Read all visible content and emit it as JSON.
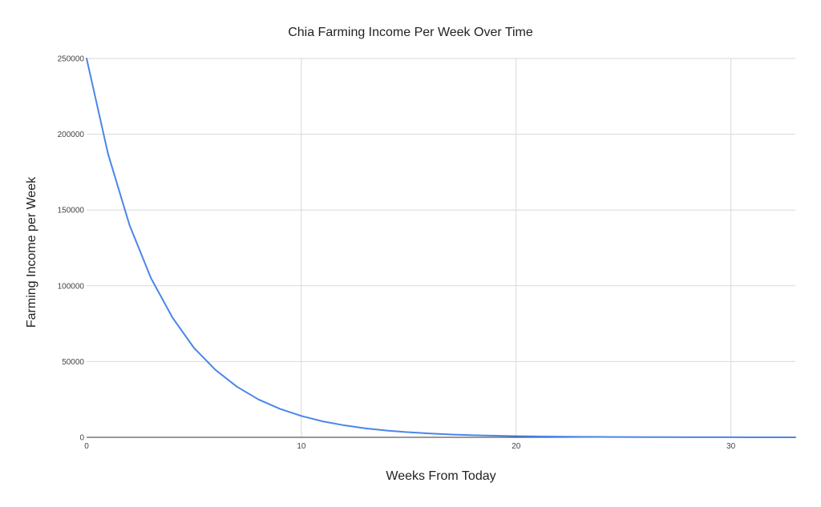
{
  "chart_data": {
    "type": "line",
    "title": "Chia Farming Income Per Week Over Time",
    "xlabel": "Weeks From Today",
    "ylabel": "Farming Income per Week",
    "xlim": [
      0,
      33
    ],
    "ylim": [
      0,
      250000
    ],
    "x_ticks": [
      0,
      10,
      20,
      30
    ],
    "y_ticks": [
      0,
      50000,
      100000,
      150000,
      200000,
      250000
    ],
    "grid": true,
    "legend": "none",
    "series": [
      {
        "color": "#4a86e8",
        "x": [
          0,
          1,
          2,
          3,
          4,
          5,
          6,
          7,
          8,
          9,
          10,
          11,
          12,
          13,
          14,
          15,
          16,
          17,
          18,
          19,
          20,
          21,
          22,
          23,
          24,
          25,
          26,
          27,
          28,
          29,
          30,
          31,
          32,
          33
        ],
        "y": [
          250000,
          187000,
          140000,
          105000,
          79000,
          59000,
          44500,
          33400,
          25000,
          18800,
          14100,
          10500,
          7900,
          5900,
          4450,
          3340,
          2500,
          1880,
          1410,
          1050,
          790,
          590,
          445,
          334,
          250,
          188,
          141,
          105,
          79,
          59,
          45,
          33,
          25,
          19
        ]
      }
    ]
  }
}
